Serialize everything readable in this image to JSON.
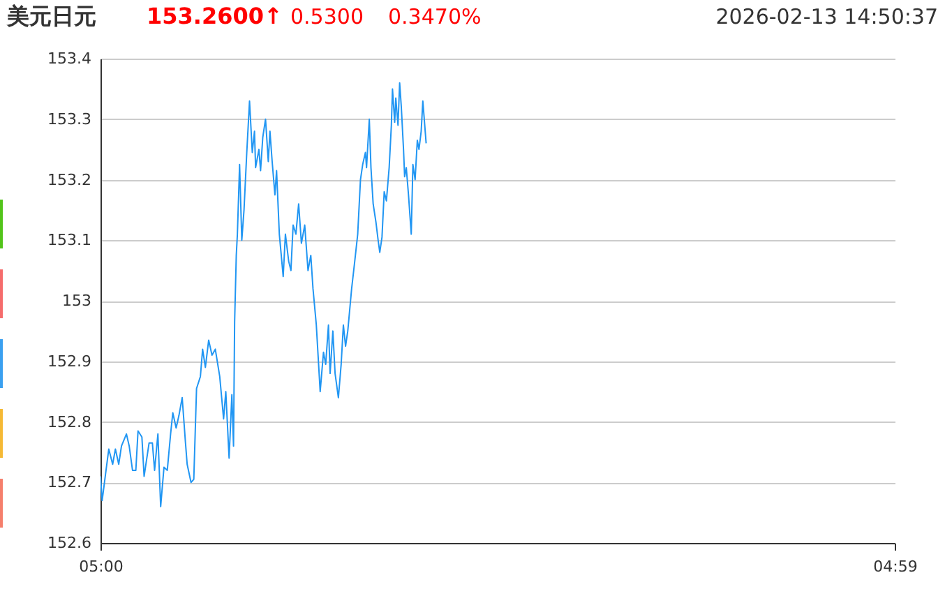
{
  "chart_data": {
    "type": "line",
    "title": "美元日元",
    "annotations": [
      "153.2600↑",
      "0.5300",
      "0.3470%",
      "2026-02-13 14:50:37"
    ],
    "x": [
      "2026-02-13T05:00",
      "2026-02-13T05:03",
      "2026-02-13T05:10",
      "2026-02-13T05:15",
      "2026-02-13T05:22",
      "2026-02-13T05:27",
      "2026-02-13T05:33",
      "2026-02-13T05:38",
      "2026-02-13T05:47",
      "2026-02-13T05:52",
      "2026-02-13T05:58",
      "2026-02-13T06:04",
      "2026-02-13T06:08",
      "2026-02-13T06:15",
      "2026-02-13T06:19",
      "2026-02-13T06:28",
      "2026-02-13T06:34",
      "2026-02-13T06:38",
      "2026-02-13T06:44",
      "2026-02-13T06:49",
      "2026-02-13T06:55",
      "2026-02-13T07:01",
      "2026-02-13T07:07",
      "2026-02-13T07:11",
      "2026-02-13T07:17",
      "2026-02-13T07:22",
      "2026-02-13T07:28",
      "2026-02-13T07:34",
      "2026-02-13T07:37",
      "2026-02-13T07:44",
      "2026-02-13T07:49",
      "2026-02-13T07:54",
      "2026-02-13T08:01",
      "2026-02-13T08:05",
      "2026-02-13T08:10",
      "2026-02-13T08:16",
      "2026-02-13T08:22",
      "2026-02-13T08:28",
      "2026-02-13T08:36",
      "2026-02-13T08:43",
      "2026-02-13T08:47",
      "2026-02-13T08:53",
      "2026-02-13T08:58",
      "2026-02-13T09:01",
      "2026-02-13T09:03",
      "2026-02-13T09:06",
      "2026-02-13T09:08",
      "2026-02-13T09:12",
      "2026-02-13T09:16",
      "2026-02-13T09:20",
      "2026-02-13T09:25",
      "2026-02-13T09:30",
      "2026-02-13T09:35",
      "2026-02-13T09:39",
      "2026-02-13T09:41",
      "2026-02-13T09:47",
      "2026-02-13T09:50",
      "2026-02-13T09:54",
      "2026-02-13T09:59",
      "2026-02-13T10:04",
      "2026-02-13T10:07",
      "2026-02-13T10:11",
      "2026-02-13T10:16",
      "2026-02-13T10:19",
      "2026-02-13T10:24",
      "2026-02-13T10:26",
      "2026-02-13T10:31",
      "2026-02-13T10:35",
      "2026-02-13T10:41",
      "2026-02-13T10:45",
      "2026-02-13T10:49",
      "2026-02-13T10:54",
      "2026-02-13T10:59",
      "2026-02-13T11:04",
      "2026-02-13T11:10",
      "2026-02-13T11:16",
      "2026-02-13T11:21",
      "2026-02-13T11:25",
      "2026-02-13T11:28",
      "2026-02-13T11:31",
      "2026-02-13T11:38",
      "2026-02-13T11:44",
      "2026-02-13T11:48",
      "2026-02-13T11:53",
      "2026-02-13T11:56",
      "2026-02-13T12:01",
      "2026-02-13T12:05",
      "2026-02-13T12:11",
      "2026-02-13T12:16",
      "2026-02-13T12:20",
      "2026-02-13T12:24",
      "2026-02-13T12:28",
      "2026-02-13T12:32",
      "2026-02-13T12:35",
      "2026-02-13T12:40",
      "2026-02-13T12:46",
      "2026-02-13T12:51",
      "2026-02-13T12:55",
      "2026-02-13T13:00",
      "2026-02-13T13:02",
      "2026-02-13T13:07",
      "2026-02-13T13:10",
      "2026-02-13T13:14",
      "2026-02-13T13:19",
      "2026-02-13T13:23",
      "2026-02-13T13:26",
      "2026-02-13T13:30",
      "2026-02-13T13:34",
      "2026-02-13T13:38",
      "2026-02-13T13:43",
      "2026-02-13T13:47",
      "2026-02-13T13:49",
      "2026-02-13T13:53",
      "2026-02-13T13:55",
      "2026-02-13T13:59",
      "2026-02-13T14:02",
      "2026-02-13T14:05",
      "2026-02-13T14:09",
      "2026-02-13T14:11",
      "2026-02-13T14:14",
      "2026-02-13T14:18",
      "2026-02-13T14:23",
      "2026-02-13T14:26",
      "2026-02-13T14:30",
      "2026-02-13T14:34",
      "2026-02-13T14:37",
      "2026-02-13T14:41",
      "2026-02-13T14:44",
      "2026-02-13T14:47",
      "2026-02-13T14:50"
    ],
    "series": [
      {
        "color": "#2196f3",
        "values": [
          152.71,
          152.67,
          152.72,
          152.755,
          152.73,
          152.755,
          152.73,
          152.76,
          152.78,
          152.76,
          152.72,
          152.72,
          152.785,
          152.775,
          152.71,
          152.765,
          152.765,
          152.72,
          152.78,
          152.66,
          152.725,
          152.72,
          152.78,
          152.815,
          152.79,
          152.81,
          152.84,
          152.765,
          152.73,
          152.7,
          152.705,
          152.855,
          152.875,
          152.92,
          152.89,
          152.935,
          152.91,
          152.92,
          152.875,
          152.805,
          152.85,
          152.74,
          152.845,
          152.76,
          152.965,
          153.075,
          153.11,
          153.225,
          153.1,
          153.15,
          153.245,
          153.33,
          153.245,
          153.28,
          153.22,
          153.25,
          153.215,
          153.27,
          153.3,
          153.23,
          153.28,
          153.23,
          153.175,
          153.215,
          153.11,
          153.09,
          153.04,
          153.11,
          153.065,
          153.05,
          153.125,
          153.11,
          153.16,
          153.095,
          153.125,
          153.05,
          153.075,
          153.02,
          152.99,
          152.96,
          152.85,
          152.915,
          152.895,
          152.96,
          152.88,
          152.95,
          152.88,
          152.84,
          152.895,
          152.96,
          152.925,
          152.95,
          152.99,
          153.02,
          153.06,
          153.11,
          153.2,
          153.225,
          153.245,
          153.22,
          153.3,
          153.22,
          153.16,
          153.13,
          153.1,
          153.08,
          153.105,
          153.18,
          153.165,
          153.22,
          153.29,
          153.35,
          153.295,
          153.335,
          153.29,
          153.36,
          153.32,
          153.25,
          153.205,
          153.22,
          153.175,
          153.11,
          153.225,
          153.2,
          153.265,
          153.25,
          153.28,
          153.33,
          153.295,
          153.26
        ]
      }
    ],
    "xlim": [
      "2026-02-13T05:00",
      "2026-02-14T04:59"
    ],
    "xticks": [
      {
        "value": "2026-02-13T05:00",
        "label": "05:00"
      },
      {
        "value": "2026-02-14T04:59",
        "label": "04:59"
      }
    ],
    "ylim": [
      152.6,
      153.4
    ],
    "yticks": [
      152.6,
      152.7,
      152.8,
      152.9,
      153,
      153.1,
      153.2,
      153.3,
      153.4
    ],
    "grid": "y",
    "legend": false,
    "marker": "none",
    "line_style": "solid"
  }
}
